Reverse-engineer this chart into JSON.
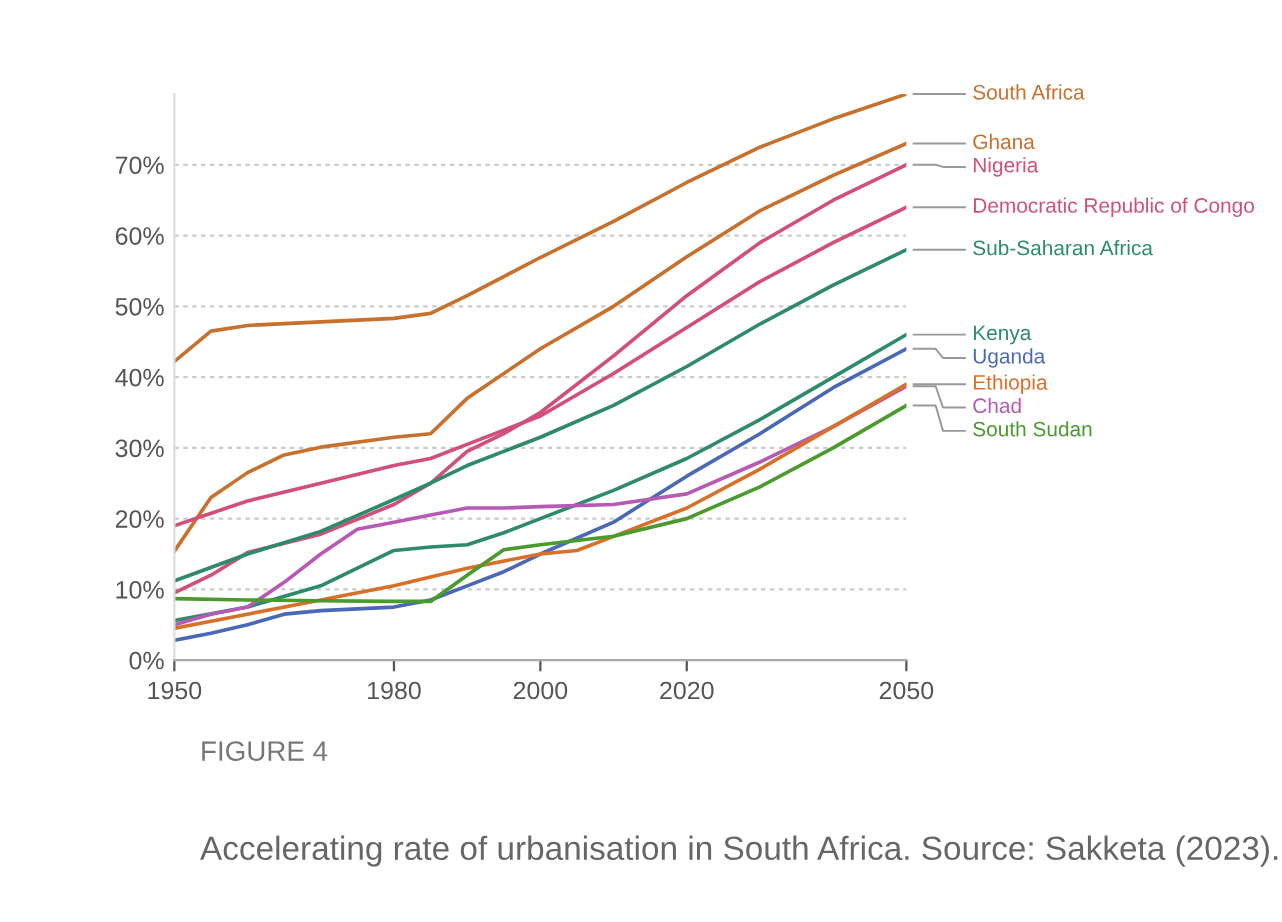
{
  "chart_data": {
    "type": "line",
    "annotations": [
      "FIGURE 4",
      "Accelerating rate of urbanisation in South Africa. Source: Sakketa (2023)."
    ],
    "xlim": [
      1950,
      2050
    ],
    "xticks": [
      1950,
      1980,
      2000,
      2020,
      2050
    ],
    "ylim": [
      0,
      80
    ],
    "yticks": [
      {
        "value": 0,
        "label": "0%"
      },
      {
        "value": 10,
        "label": "10%"
      },
      {
        "value": 20,
        "label": "20%"
      },
      {
        "value": 30,
        "label": "30%"
      },
      {
        "value": 40,
        "label": "40%"
      },
      {
        "value": 50,
        "label": "50%"
      },
      {
        "value": 60,
        "label": "60%"
      },
      {
        "value": 70,
        "label": "70%"
      }
    ],
    "grid": "y",
    "legend": false,
    "marker": "none",
    "line_style": "solid",
    "series": [
      {
        "name": "South Africa",
        "color": "#c8702d",
        "x": [
          1950,
          1955,
          1960,
          1970,
          1980,
          1985,
          1990,
          2000,
          2010,
          2020,
          2030,
          2040,
          2050
        ],
        "values": [
          42.2,
          46.5,
          47.3,
          47.8,
          48.3,
          49.0,
          51.5,
          56.9,
          62,
          67.5,
          72.5,
          76.5,
          80
        ]
      },
      {
        "name": "Ghana",
        "color": "#c8702d",
        "x": [
          1950,
          1955,
          1960,
          1965,
          1970,
          1980,
          1985,
          1990,
          2000,
          2010,
          2020,
          2030,
          2040,
          2050
        ],
        "values": [
          15.4,
          23,
          26.5,
          29,
          30.1,
          31.5,
          32,
          37,
          44,
          50,
          57,
          63.5,
          68.5,
          73
        ]
      },
      {
        "name": "Nigeria",
        "color": "#d14f7a",
        "x": [
          1950,
          1955,
          1960,
          1970,
          1980,
          1985,
          1990,
          1995,
          2000,
          2010,
          2020,
          2030,
          2040,
          2050
        ],
        "values": [
          9.5,
          12,
          15.2,
          17.8,
          22,
          25,
          29.5,
          32,
          35,
          43,
          51.5,
          59,
          65,
          70
        ]
      },
      {
        "name": "Democratic Republic of Congo",
        "color": "#d14f7a",
        "x": [
          1950,
          1960,
          1970,
          1980,
          1985,
          1990,
          2000,
          2010,
          2020,
          2030,
          2040,
          2050
        ],
        "values": [
          19,
          22.5,
          25,
          27.5,
          28.5,
          30.5,
          34.5,
          40.5,
          47,
          53.5,
          59,
          64
        ]
      },
      {
        "name": "Sub-Saharan Africa",
        "color": "#2e8a6a",
        "x": [
          1950,
          1960,
          1970,
          1980,
          1985,
          1990,
          1995,
          2000,
          2010,
          2020,
          2030,
          2040,
          2050
        ],
        "values": [
          11.2,
          15,
          18.2,
          22.7,
          25,
          27.5,
          29.5,
          31.5,
          36,
          41.5,
          47.5,
          53,
          58
        ]
      },
      {
        "name": "Kenya",
        "color": "#2e8a6a",
        "x": [
          1950,
          1960,
          1970,
          1980,
          1985,
          1990,
          1995,
          2000,
          2010,
          2020,
          2030,
          2040,
          2050
        ],
        "values": [
          5.6,
          7.5,
          10.5,
          15.5,
          16,
          16.3,
          18,
          20,
          24,
          28.5,
          34,
          40,
          46
        ]
      },
      {
        "name": "Uganda",
        "color": "#4a68b5",
        "x": [
          1950,
          1955,
          1960,
          1965,
          1970,
          1980,
          1985,
          1990,
          1995,
          2000,
          2010,
          2020,
          2030,
          2040,
          2050
        ],
        "values": [
          2.8,
          3.8,
          5,
          6.5,
          7,
          7.5,
          8.5,
          10.5,
          12.5,
          15,
          19.5,
          26,
          32,
          38.5,
          44
        ]
      },
      {
        "name": "Chad",
        "color": "#b65ab5",
        "x": [
          1950,
          1955,
          1960,
          1965,
          1970,
          1975,
          1980,
          1985,
          1990,
          1995,
          2000,
          2010,
          2020,
          2030,
          2040,
          2050
        ],
        "values": [
          5,
          6.5,
          7.5,
          11,
          15,
          18.5,
          19.5,
          20.5,
          21.5,
          21.5,
          21.7,
          22,
          23.5,
          28,
          33,
          38.7
        ]
      },
      {
        "name": "Ethiopia",
        "color": "#d9702a",
        "x": [
          1950,
          1960,
          1970,
          1980,
          1990,
          2000,
          2005,
          2010,
          2020,
          2030,
          2040,
          2050
        ],
        "values": [
          4.5,
          6.5,
          8.5,
          10.5,
          13,
          15,
          15.5,
          17.5,
          21.5,
          27,
          33,
          39
        ]
      },
      {
        "name": "South Sudan",
        "color": "#4a9a2e",
        "x": [
          1950,
          1960,
          1970,
          1980,
          1985,
          1990,
          1995,
          2000,
          2010,
          2020,
          2030,
          2040,
          2050
        ],
        "values": [
          8.7,
          8.5,
          8.4,
          8.3,
          8.3,
          12,
          15.6,
          16.3,
          17.5,
          20,
          24.5,
          30,
          36
        ]
      }
    ]
  }
}
